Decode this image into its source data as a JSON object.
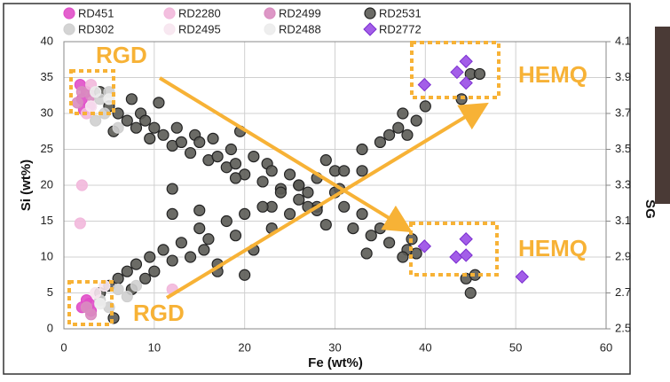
{
  "chart_data": {
    "type": "scatter",
    "x_label": "Fe (wt%)",
    "y_label": "Si (wt%)",
    "y2_label": "SG",
    "xlim": [
      0,
      60
    ],
    "xticks": [
      0,
      10,
      20,
      30,
      40,
      50,
      60
    ],
    "ylim": [
      0,
      40
    ],
    "yticks": [
      0,
      5,
      10,
      15,
      20,
      25,
      30,
      35,
      40
    ],
    "y2lim": [
      2.5,
      4.1
    ],
    "y2ticks": [
      2.5,
      2.7,
      2.9,
      3.1,
      3.3,
      3.5,
      3.7,
      3.9,
      4.1
    ],
    "grid": true,
    "annotations": [
      "RGD",
      "RGD",
      "HEMQ",
      "HEMQ"
    ],
    "series": [
      {
        "name": "RD451",
        "color": "#e04fc8",
        "marker": "circle",
        "x": [
          2,
          2.5,
          3,
          1.8,
          2.2,
          2,
          3,
          2.5,
          2.8
        ],
        "values": [
          32,
          33,
          31,
          34,
          30.5,
          3,
          2.5,
          4,
          3.5
        ]
      },
      {
        "name": "RD2280",
        "color": "#f2b8dc",
        "marker": "circle",
        "x": [
          2,
          1.8,
          12,
          3,
          2.5
        ],
        "values": [
          20,
          14.7,
          5.5,
          34,
          30
        ]
      },
      {
        "name": "RD2499",
        "color": "#d98cc0",
        "marker": "circle",
        "x": [
          2,
          3,
          2.5,
          3,
          1.5
        ],
        "values": [
          33,
          32.5,
          3,
          2,
          31.5
        ]
      },
      {
        "name": "RD2531",
        "color": "#5b5b55",
        "marker": "circle",
        "x": [
          4,
          5,
          5.5,
          6,
          7,
          7.5,
          8,
          8.5,
          9,
          9.5,
          10,
          10.5,
          11,
          12,
          12.5,
          13,
          14,
          14.5,
          15,
          16,
          16.5,
          17,
          18,
          18.5,
          19,
          19.5,
          20,
          21,
          22,
          22.5,
          23,
          24,
          25,
          26,
          27,
          28,
          29,
          30,
          30.5,
          31,
          33,
          35,
          36,
          37,
          38,
          39,
          38.5,
          12,
          12,
          26,
          33,
          23,
          19,
          4,
          5,
          5.5,
          6,
          7,
          7.5,
          8,
          9,
          9.5,
          10,
          11,
          12,
          13,
          14,
          15,
          15.5,
          16,
          17,
          18,
          19,
          20,
          21,
          22,
          23,
          24,
          25,
          26,
          27,
          28,
          29,
          30,
          31,
          32,
          33,
          34,
          35,
          36,
          37,
          37.5,
          38,
          39,
          40,
          44,
          45,
          46,
          45,
          44.5,
          45.5,
          33.5,
          37.5,
          17,
          20,
          28,
          15
        ],
        "values": [
          33,
          31,
          27.5,
          30,
          29,
          32,
          28,
          30,
          29,
          26.5,
          28,
          31.5,
          27,
          25.5,
          28,
          26,
          24.5,
          27,
          26,
          23.5,
          26.5,
          24,
          22.5,
          25,
          23,
          27.5,
          21.5,
          24,
          20.5,
          23,
          22,
          19.5,
          21.5,
          18,
          19,
          17,
          23.5,
          22,
          19.5,
          17,
          16,
          14,
          12,
          15,
          11,
          10.5,
          12.5,
          16,
          19.5,
          20,
          22,
          17,
          21,
          5,
          6,
          1.5,
          7,
          8,
          5.5,
          9,
          7,
          10,
          8,
          11,
          9.5,
          12,
          10,
          14,
          11,
          12.5,
          9,
          15,
          13,
          16,
          11,
          17,
          14,
          19,
          16,
          20,
          17,
          21,
          14.5,
          19,
          22,
          14,
          25,
          13,
          26,
          27,
          28,
          30,
          27,
          29,
          31,
          32,
          35.5,
          35.5,
          5,
          7,
          7.5,
          10.5,
          10,
          8,
          7.5,
          16.5,
          16.5
        ]
      },
      {
        "name": "RD302",
        "color": "#cfcfcf",
        "marker": "circle",
        "x": [
          4,
          4.5,
          5,
          6,
          4,
          5,
          6,
          7,
          3.5,
          8
        ],
        "values": [
          32,
          30,
          33,
          28,
          4,
          3,
          5.5,
          4.5,
          29,
          6
        ]
      },
      {
        "name": "RD2495",
        "color": "#f7e6ef",
        "marker": "circle",
        "x": [
          3,
          3.5,
          4.5
        ],
        "values": [
          31,
          5,
          6
        ]
      },
      {
        "name": "RD2488",
        "color": "#ececec",
        "marker": "circle",
        "x": [
          3.5,
          4,
          5
        ],
        "values": [
          33,
          3.5,
          32
        ]
      },
      {
        "name": "RD2772",
        "color": "#a35ee8",
        "marker": "diamond",
        "axis": "y2",
        "x": [
          39.9,
          43.5,
          44.5,
          44.5,
          39.9,
          43.4,
          44.5,
          44.5,
          50.7
        ],
        "values": [
          3.86,
          3.93,
          3.99,
          3.87,
          2.96,
          2.9,
          3.0,
          2.91,
          2.79
        ]
      }
    ]
  }
}
